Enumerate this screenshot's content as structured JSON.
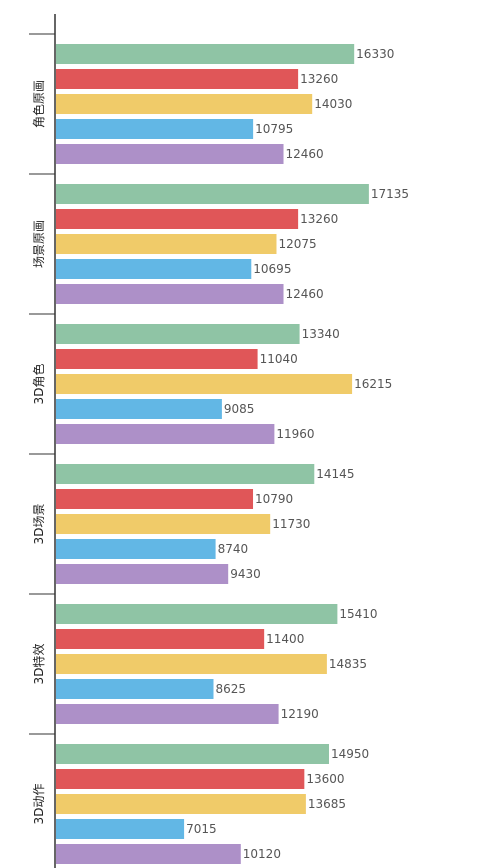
{
  "chart_data": {
    "type": "bar",
    "orientation": "horizontal",
    "categories": [
      "角色原画",
      "场景原画",
      "3D角色",
      "3D场景",
      "3D特效",
      "3D动作"
    ],
    "series": [
      {
        "color": "#8fc4a5",
        "values": [
          16330,
          17135,
          13340,
          14145,
          15410,
          14950
        ]
      },
      {
        "color": "#e05658",
        "values": [
          13260,
          13260,
          11040,
          10790,
          11400,
          13600
        ]
      },
      {
        "color": "#f0cb69",
        "values": [
          14030,
          12075,
          16215,
          11730,
          14835,
          13685
        ]
      },
      {
        "color": "#62b7e5",
        "values": [
          10795,
          10695,
          9085,
          8740,
          8625,
          7015
        ]
      },
      {
        "color": "#ad90c8",
        "values": [
          12460,
          12460,
          11960,
          9430,
          12190,
          10120
        ]
      }
    ],
    "xlim": [
      0,
      20000
    ],
    "grid": false,
    "legend": "none",
    "title": "",
    "xlabel": "",
    "ylabel": ""
  }
}
